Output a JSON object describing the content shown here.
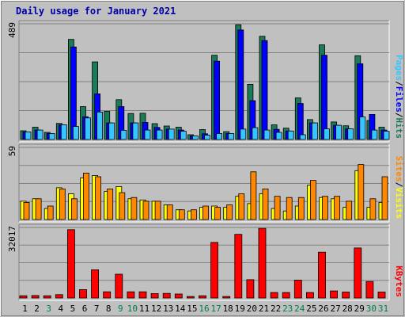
{
  "chart_data": {
    "type": "bar",
    "title": "Daily usage for January 2021",
    "categories": [
      "1",
      "2",
      "3",
      "4",
      "5",
      "6",
      "7",
      "8",
      "9",
      "10",
      "11",
      "12",
      "13",
      "14",
      "15",
      "16",
      "17",
      "18",
      "19",
      "20",
      "21",
      "22",
      "23",
      "24",
      "25",
      "26",
      "27",
      "28",
      "29",
      "30",
      "31"
    ],
    "weekend_days": [
      3,
      9,
      10,
      16,
      17,
      23,
      24,
      30,
      31
    ],
    "colors": {
      "hits": "#1b7a58",
      "files": "#0000ff",
      "pages": "#36c6ff",
      "visits": "#ffff00",
      "sites": "#ff8800",
      "kbytes": "#ff0000",
      "title": "#0000aa",
      "weekday": "#000000",
      "weekend": "#00804a"
    },
    "panels": [
      {
        "id": "hits-files-pages",
        "ymax": 489,
        "ymax_label": "489",
        "legend": [
          {
            "text": "Hits",
            "color": "#1b7a58"
          },
          {
            "text": "/",
            "color": "#000000"
          },
          {
            "text": "Files",
            "color": "#0000ff"
          },
          {
            "text": "/",
            "color": "#000000"
          },
          {
            "text": "Pages",
            "color": "#36c6ff"
          }
        ],
        "series": [
          {
            "name": "Hits",
            "color": "#1b7a58",
            "values": [
              37,
              52,
              30,
              68,
              423,
              139,
              328,
              119,
              168,
              110,
              111,
              67,
              57,
              52,
              20,
              42,
              356,
              33,
              485,
              233,
              436,
              62,
              48,
              176,
              84,
              400,
              74,
              58,
              354,
              80,
              52
            ]
          },
          {
            "name": "Files",
            "color": "#0000ff",
            "values": [
              32,
              40,
              25,
              62,
              391,
              96,
              193,
              70,
              139,
              70,
              72,
              51,
              44,
              40,
              15,
              24,
              331,
              25,
              463,
              164,
              418,
              43,
              36,
              152,
              70,
              356,
              60,
              45,
              320,
              106,
              40
            ]
          },
          {
            "name": "Pages",
            "color": "#36c6ff",
            "values": [
              32,
              40,
              25,
              62,
              55,
              91,
              116,
              70,
              39,
              70,
              40,
              40,
              44,
              35,
              15,
              18,
              25,
              25,
              44,
              50,
              40,
              30,
              36,
              20,
              70,
              45,
              60,
              45,
              95,
              40,
              35
            ]
          }
        ]
      },
      {
        "id": "visits-sites",
        "ymax": 59,
        "ymax_label": "59",
        "legend": [
          {
            "text": "Visits",
            "color": "#ffff00"
          },
          {
            "text": "/",
            "color": "#000000"
          },
          {
            "text": "Sites",
            "color": "#ff8800"
          }
        ],
        "series": [
          {
            "name": "Visits",
            "color": "#ffff00",
            "values": [
              15,
              17,
              9,
              26,
              21,
              34,
              36,
              23,
              27,
              17,
              16,
              15,
              12,
              8,
              7,
              10,
              11,
              10,
              19,
              13,
              21,
              9,
              7,
              11,
              28,
              18,
              17,
              10,
              40,
              10,
              14
            ]
          },
          {
            "name": "Sites",
            "color": "#ff8800",
            "values": [
              14,
              17,
              11,
              25,
              17,
              38,
              35,
              25,
              22,
              18,
              15,
              15,
              12,
              8,
              8,
              11,
              10,
              12,
              21,
              39,
              25,
              19,
              18,
              18,
              32,
              19,
              19,
              15,
              45,
              17,
              35
            ]
          }
        ]
      },
      {
        "id": "kbytes",
        "ymax": 32017,
        "ymax_label": "32017",
        "legend": [
          {
            "text": "KBytes",
            "color": "#ff0000"
          }
        ],
        "series": [
          {
            "name": "KBytes",
            "color": "#ff0000",
            "values": [
              1000,
              1100,
              1000,
              1500,
              31000,
              3800,
              12800,
              2800,
              10800,
              2800,
              2800,
              2000,
              2100,
              1800,
              700,
              1000,
              25200,
              700,
              28900,
              8300,
              31600,
              2500,
              2500,
              8100,
              2500,
              20800,
              3200,
              2700,
              22700,
              7500,
              2700
            ]
          }
        ]
      }
    ]
  }
}
